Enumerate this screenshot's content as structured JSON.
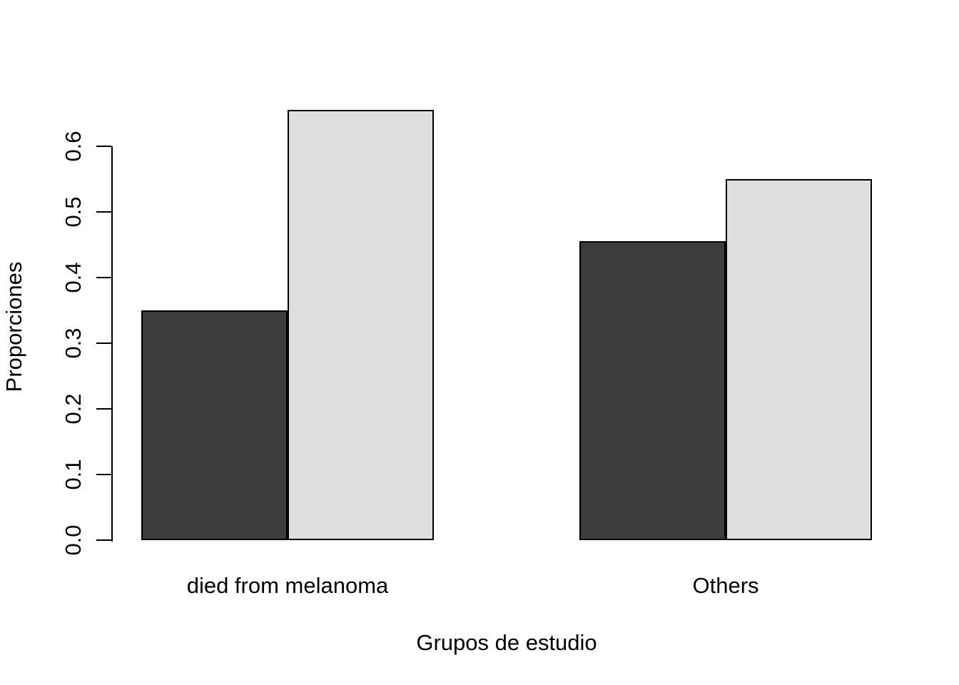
{
  "chart_data": {
    "type": "bar",
    "title": "",
    "xlabel": "Grupos de estudio",
    "ylabel": "Proporciones",
    "categories": [
      "died from melanoma",
      "Others"
    ],
    "series": [
      {
        "name": "dark-gray-bars",
        "color": "#3C3C3C",
        "values": [
          0.35,
          0.455
        ]
      },
      {
        "name": "light-gray-bars",
        "color": "#DEDEDE",
        "values": [
          0.655,
          0.55
        ]
      }
    ],
    "yticks": {
      "values": [
        0,
        0.1,
        0.2,
        0.3,
        0.4,
        0.5,
        0.6
      ],
      "labels": [
        "0.0",
        "0.1",
        "0.2",
        "0.3",
        "0.4",
        "0.5",
        "0.6"
      ]
    },
    "ylim": [
      0,
      0.6
    ],
    "grid": false,
    "legend": "none",
    "bar_border_color": "#000000",
    "axis_color": "#000000",
    "background": "#FFFFFF"
  }
}
